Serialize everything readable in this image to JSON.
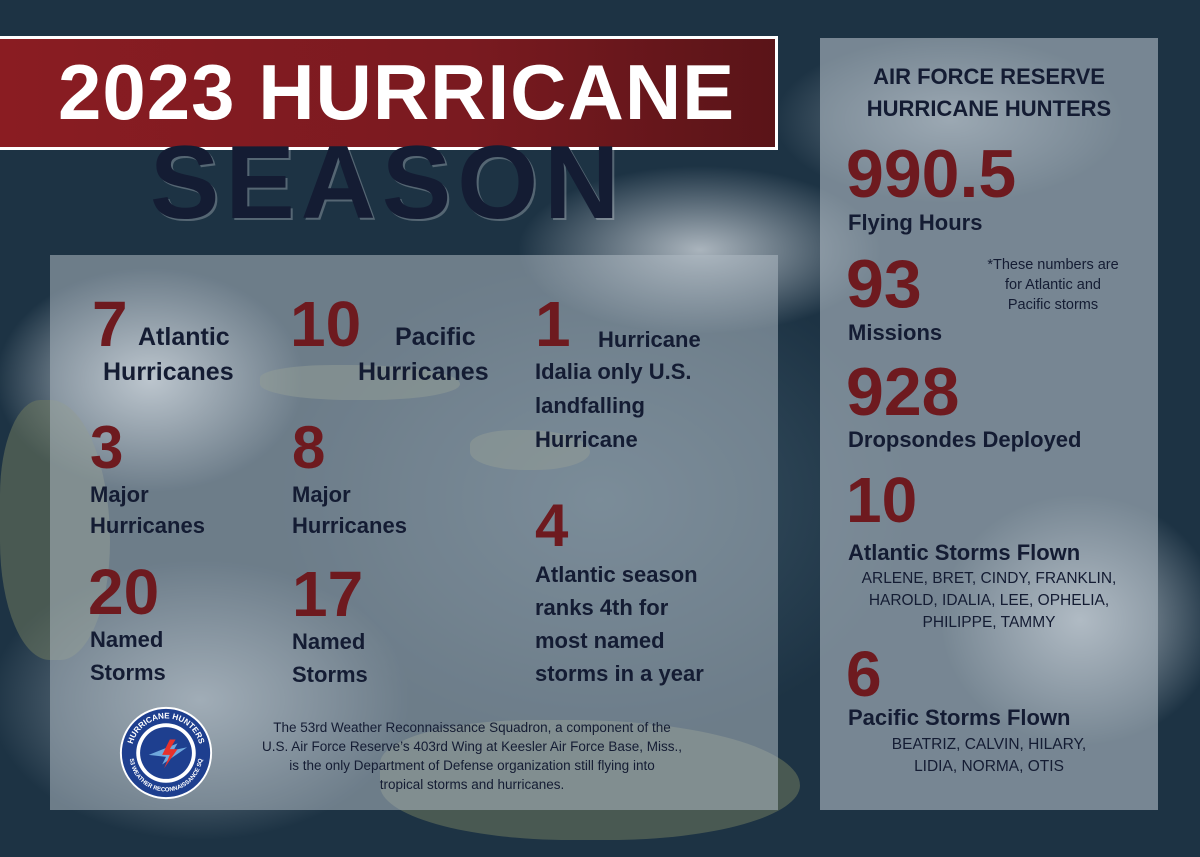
{
  "title": {
    "line1": "2023 HURRICANE",
    "line2": "SEASON"
  },
  "stats": {
    "atlantic_hurricanes": {
      "value": "7",
      "label1": "Atlantic",
      "label2": "Hurricanes"
    },
    "pacific_hurricanes": {
      "value": "10",
      "label1": "Pacific",
      "label2": "Hurricanes"
    },
    "landfall": {
      "value": "1",
      "lines": [
        "Hurricane",
        "Idalia only U.S.",
        "landfalling",
        "Hurricane"
      ]
    },
    "atlantic_major": {
      "value": "3",
      "lines": [
        "Major",
        "Hurricanes"
      ]
    },
    "pacific_major": {
      "value": "8",
      "lines": [
        "Major",
        "Hurricanes"
      ]
    },
    "atlantic_rank": {
      "value": "4",
      "lines": [
        "Atlantic season",
        "ranks 4th for",
        "most named",
        "storms in a year"
      ]
    },
    "atlantic_named": {
      "value": "20",
      "lines": [
        "Named",
        "Storms"
      ]
    },
    "pacific_named": {
      "value": "17",
      "lines": [
        "Named",
        "Storms"
      ]
    }
  },
  "footer_text": {
    "lines": [
      "The 53rd Weather Reconnaissance Squadron, a component of the",
      "U.S. Air Force Reserve’s 403rd Wing at Keesler Air Force Base, Miss.,",
      "is the only Department of Defense organization still flying into",
      "tropical storms and hurricanes."
    ]
  },
  "logo": {
    "top_text": "HURRICANE HUNTERS",
    "bottom_text": "53 WEATHER RECONNAISSANCE SQ",
    "colors": {
      "ring": "#1e3f8f",
      "inner": "#ffffff",
      "bolt": "#e8322c"
    }
  },
  "hunters": {
    "heading1": "AIR FORCE RESERVE",
    "heading2": "HURRICANE HUNTERS",
    "flying_hours": {
      "value": "990.5",
      "label": "Flying Hours"
    },
    "missions": {
      "value": "93",
      "label": "Missions"
    },
    "note_lines": [
      "*These numbers are",
      "for Atlantic and",
      "Pacific storms"
    ],
    "dropsondes": {
      "value": "928",
      "label": "Dropsondes Deployed"
    },
    "atlantic_flown": {
      "value": "10",
      "label": "Atlantic Storms Flown",
      "names": [
        "ARLENE, BRET, CINDY, FRANKLIN,",
        "HAROLD, IDALIA, LEE, OPHELIA,",
        "PHILIPPE, TAMMY"
      ]
    },
    "pacific_flown": {
      "value": "6",
      "label": "Pacific Storms Flown",
      "names": [
        "BEATRIZ, CALVIN, HILARY,",
        "LIDIA, NORMA, OTIS"
      ]
    }
  },
  "colors": {
    "accent_red": "#6e1a1f",
    "banner_red": "#8a1c22",
    "navy": "#141c33"
  }
}
